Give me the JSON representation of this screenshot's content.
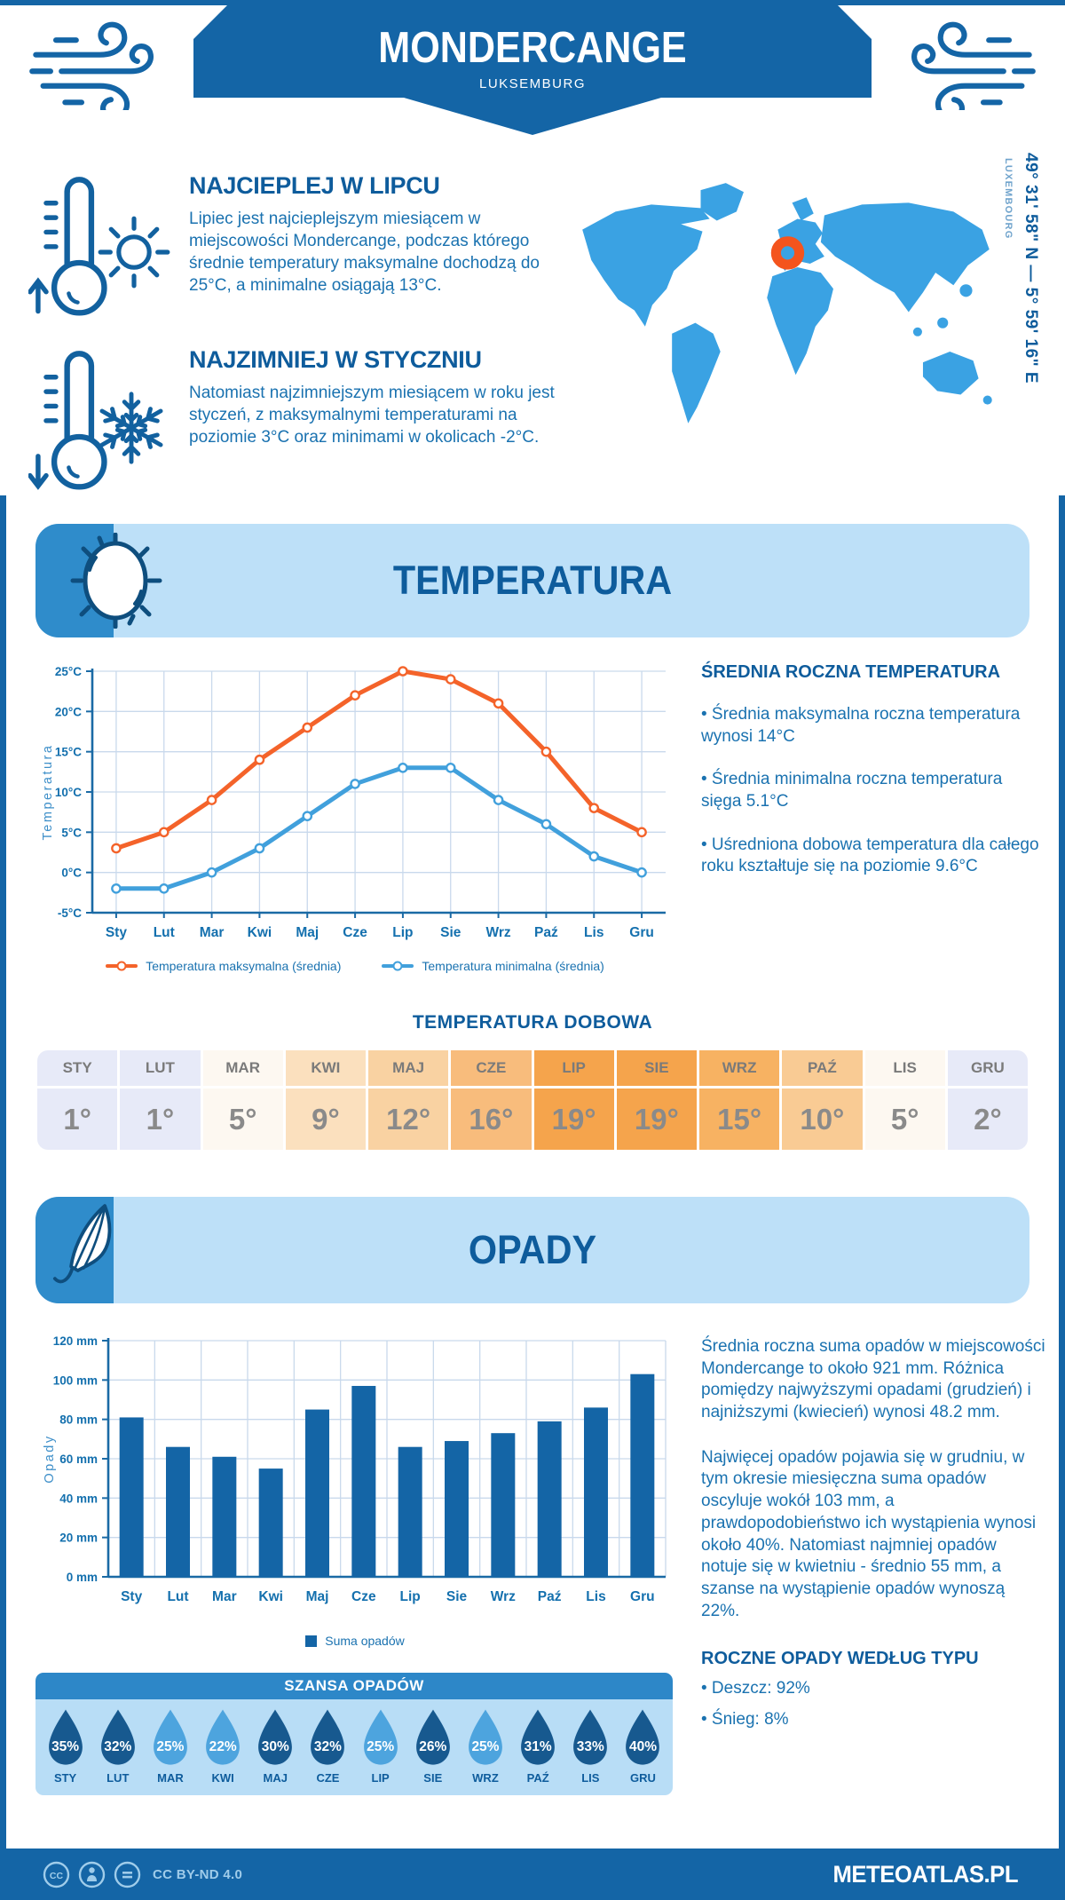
{
  "header": {
    "title": "MONDERCANGE",
    "subtitle": "LUKSEMBURG"
  },
  "map": {
    "coordinates": "49° 31' 58\" N — 5° 59' 16\" E",
    "country_label": "LUXEMBOURG"
  },
  "intro": {
    "warm_heading": "NAJCIEPLEJ W LIPCU",
    "warm_body": "Lipiec jest najcieplejszym miesiącem w miejscowości Mondercange, podczas którego średnie temperatury maksymalne dochodzą do 25°C, a minimalne osiągają 13°C.",
    "cold_heading": "NAJZIMNIEJ W STYCZNIU",
    "cold_body": "Natomiast najzimniejszym miesiącem w roku jest styczeń, z maksymalnymi temperaturami na poziomie 3°C oraz minimami w okolicach -2°C."
  },
  "temperature_section": {
    "banner": "TEMPERATURA",
    "annual_heading": "ŚREDNIA ROCZNA TEMPERATURA",
    "annual_bullets": [
      "Średnia maksymalna roczna temperatura wynosi 14°C",
      "Średnia minimalna roczna temperatura sięga 5.1°C",
      "Uśredniona dobowa temperatura dla całego roku kształtuje się na poziomie 9.6°C"
    ],
    "daily_heading": "TEMPERATURA DOBOWA",
    "daily_months": [
      "STY",
      "LUT",
      "MAR",
      "KWI",
      "MAJ",
      "CZE",
      "LIP",
      "SIE",
      "WRZ",
      "PAŹ",
      "LIS",
      "GRU"
    ],
    "daily_values": [
      "1°",
      "1°",
      "5°",
      "9°",
      "12°",
      "16°",
      "19°",
      "19°",
      "15°",
      "10°",
      "5°",
      "2°"
    ],
    "daily_cell_colors": [
      "#E7EAF8",
      "#E7EAF8",
      "#FDF8F1",
      "#FBE0BE",
      "#F9D2A2",
      "#F8BC7C",
      "#F5A44C",
      "#F5A44C",
      "#F7B262",
      "#F9CB94",
      "#FDF8F1",
      "#E7EAF8"
    ]
  },
  "precipitation_section": {
    "banner": "OPADY",
    "paragraphs": [
      "Średnia roczna suma opadów w miejscowości Mondercange to około 921 mm. Różnica pomiędzy najwyższymi opadami (grudzień) i najniższymi (kwiecień) wynosi 48.2 mm.",
      "Najwięcej opadów pojawia się w grudniu, w tym okresie miesięczna suma opadów oscyluje wokół 103 mm, a prawdopodobieństwo ich wystąpienia wynosi około 40%. Natomiast najmniej opadów notuje się w kwietniu - średnio 55 mm, a szanse na wystąpienie opadów wynoszą 22%."
    ],
    "type_heading": "ROCZNE OPADY WEDŁUG TYPU",
    "type_bullets": [
      "Deszcz: 92%",
      "Śnieg: 8%"
    ],
    "chance": {
      "heading": "SZANSA OPADÓW",
      "months": [
        "STY",
        "LUT",
        "MAR",
        "KWI",
        "MAJ",
        "CZE",
        "LIP",
        "SIE",
        "WRZ",
        "PAŹ",
        "LIS",
        "GRU"
      ],
      "percents": [
        "35%",
        "32%",
        "25%",
        "22%",
        "30%",
        "32%",
        "25%",
        "26%",
        "25%",
        "31%",
        "33%",
        "40%"
      ],
      "shades": [
        "dark",
        "dark",
        "light",
        "light",
        "dark",
        "dark",
        "light",
        "dark",
        "light",
        "dark",
        "dark",
        "dark"
      ],
      "drop_dark": "#17598F",
      "drop_light": "#4DA4DE"
    }
  },
  "footer": {
    "license": "CC BY-ND 4.0",
    "brand": "METEOATLAS.PL"
  },
  "colors": {
    "frame": "#1465A6",
    "banner_bg": "#BDE0F8",
    "banner_corner": "#2F8CCB",
    "heading": "#0E5C9C",
    "body_text": "#1A72B0",
    "map_fill": "#3AA2E3",
    "marker": "#F4541D",
    "grid": "#C9D9EC",
    "axis": "#1A6AA5",
    "tick_text": "#1470AE"
  },
  "chart_data": [
    {
      "type": "line",
      "title": "",
      "categories": [
        "Sty",
        "Lut",
        "Mar",
        "Kwi",
        "Maj",
        "Cze",
        "Lip",
        "Sie",
        "Wrz",
        "Paź",
        "Lis",
        "Gru"
      ],
      "series": [
        {
          "name": "Temperatura maksymalna (średnia)",
          "color": "#F4632A",
          "values": [
            3,
            5,
            9,
            14,
            18,
            22,
            25,
            24,
            21,
            15,
            8,
            5
          ]
        },
        {
          "name": "Temperatura minimalna (średnia)",
          "color": "#41A0DC",
          "values": [
            -2,
            -2,
            0,
            3,
            7,
            11,
            13,
            13,
            9,
            6,
            2,
            0
          ]
        }
      ],
      "xlabel": "",
      "ylabel": "Temperatura",
      "ylim": [
        -5,
        25
      ],
      "ytick_step": 5,
      "ytick_suffix": "°C",
      "grid": true,
      "legend_position": "bottom"
    },
    {
      "type": "bar",
      "title": "",
      "categories": [
        "Sty",
        "Lut",
        "Mar",
        "Kwi",
        "Maj",
        "Cze",
        "Lip",
        "Sie",
        "Wrz",
        "Paź",
        "Lis",
        "Gru"
      ],
      "series": [
        {
          "name": "Suma opadów",
          "color": "#1465A6",
          "values": [
            81,
            66,
            61,
            55,
            85,
            97,
            66,
            69,
            73,
            79,
            86,
            103
          ]
        }
      ],
      "xlabel": "",
      "ylabel": "Opady",
      "ylim": [
        0,
        120
      ],
      "ytick_step": 20,
      "ytick_suffix": " mm",
      "grid": true,
      "legend_position": "bottom"
    }
  ]
}
